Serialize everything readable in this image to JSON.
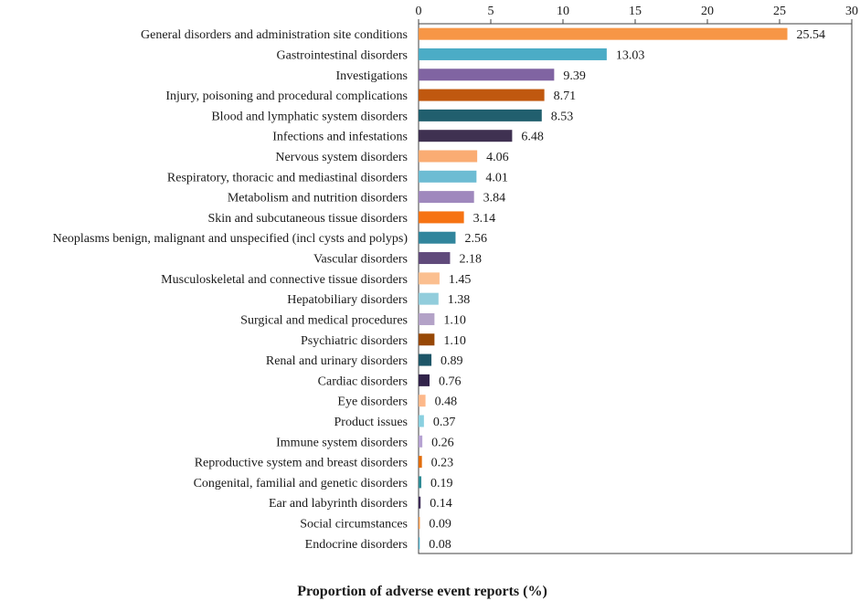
{
  "chart_data": {
    "type": "bar",
    "orientation": "horizontal",
    "title": "",
    "xlabel": "Proportion of adverse event reports (%)",
    "ylabel": "",
    "xlim": [
      0,
      30
    ],
    "xticks": [
      "0",
      "5",
      "10",
      "15",
      "20",
      "25",
      "30"
    ],
    "xtick_values": [
      0,
      5,
      10,
      15,
      20,
      25,
      30
    ],
    "xaxis_position": "top",
    "grid": false,
    "categories": [
      "General disorders and administration site conditions",
      "Gastrointestinal disorders",
      "Investigations",
      "Injury, poisoning and procedural complications",
      "Blood and lymphatic system disorders",
      "Infections and infestations",
      "Nervous system disorders",
      "Respiratory, thoracic and mediastinal disorders",
      "Metabolism and nutrition disorders",
      "Skin and subcutaneous tissue disorders",
      "Neoplasms benign, malignant and unspecified (incl cysts and polyps)",
      "Vascular disorders",
      "Musculoskeletal and connective tissue disorders",
      "Hepatobiliary disorders",
      "Surgical and medical procedures",
      "Psychiatric disorders",
      "Renal and urinary disorders",
      "Cardiac disorders",
      "Eye disorders",
      "Product issues",
      "Immune system disorders",
      "Reproductive system and breast disorders",
      "Congenital, familial and genetic disorders",
      "Ear and labyrinth disorders",
      "Social circumstances",
      "Endocrine disorders"
    ],
    "values": [
      25.54,
      13.03,
      9.39,
      8.71,
      8.53,
      6.48,
      4.06,
      4.01,
      3.84,
      3.14,
      2.56,
      2.18,
      1.45,
      1.38,
      1.1,
      1.1,
      0.89,
      0.76,
      0.48,
      0.37,
      0.26,
      0.23,
      0.19,
      0.14,
      0.09,
      0.08
    ],
    "value_labels": [
      "25.54",
      "13.03",
      "9.39",
      "8.71",
      "8.53",
      "6.48",
      "4.06",
      "4.01",
      "3.84",
      "3.14",
      "2.56",
      "2.18",
      "1.45",
      "1.38",
      "1.10",
      "1.10",
      "0.89",
      "0.76",
      "0.48",
      "0.37",
      "0.26",
      "0.23",
      "0.19",
      "0.14",
      "0.09",
      "0.08"
    ],
    "colors": [
      "#F79646",
      "#4BACC6",
      "#8064A2",
      "#C0580F",
      "#215F6E",
      "#3F3151",
      "#FAAC73",
      "#6DBCD3",
      "#9F88BD",
      "#F67313",
      "#31859C",
      "#604A7B",
      "#FBBF90",
      "#92CDDC",
      "#B3A2C7",
      "#974806",
      "#1E5668",
      "#31234A",
      "#FDB88A",
      "#8AD0E0",
      "#B6A2D2",
      "#E36C09",
      "#2D8A95",
      "#3E2C58",
      "#F79646",
      "#4BACC6"
    ]
  }
}
